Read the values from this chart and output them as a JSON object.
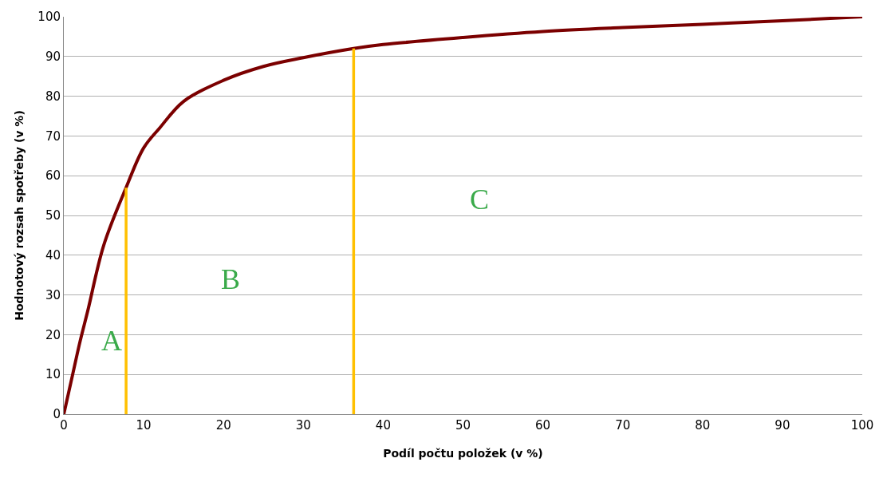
{
  "chart_data": {
    "type": "line",
    "xlabel": "Podíl počtu položek (v %)",
    "ylabel": "Hodnotový rozsah spotřeby (v %)",
    "series": [
      {
        "color": "#7b0000",
        "x": [
          0,
          1,
          2,
          3,
          5,
          7.8,
          10,
          12,
          15,
          20,
          25,
          30,
          36.3,
          40,
          50,
          60,
          70,
          80,
          90,
          100
        ],
        "values": [
          0,
          9,
          18,
          26,
          42.5,
          57,
          67,
          72,
          78.7,
          84,
          87.5,
          89.7,
          92,
          93,
          94.8,
          96.3,
          97.3,
          98.1,
          99,
          100
        ]
      },
      {
        "color": "#ffc000",
        "x": [
          7.8,
          7.8
        ],
        "values": [
          0,
          57
        ]
      },
      {
        "color": "#ffc000",
        "x": [
          36.3,
          36.3
        ],
        "values": [
          0,
          92
        ]
      }
    ],
    "annotations": [
      "A",
      "B",
      "C"
    ],
    "xlim": [
      0,
      100
    ],
    "xticks": [
      0,
      10,
      20,
      30,
      40,
      50,
      60,
      70,
      80,
      90,
      100
    ],
    "ylim": [
      0,
      100
    ],
    "yticks": [
      0,
      10,
      20,
      30,
      40,
      50,
      60,
      70,
      80,
      90,
      100
    ],
    "grid": "y",
    "marker": "none",
    "line_style": "solid"
  }
}
